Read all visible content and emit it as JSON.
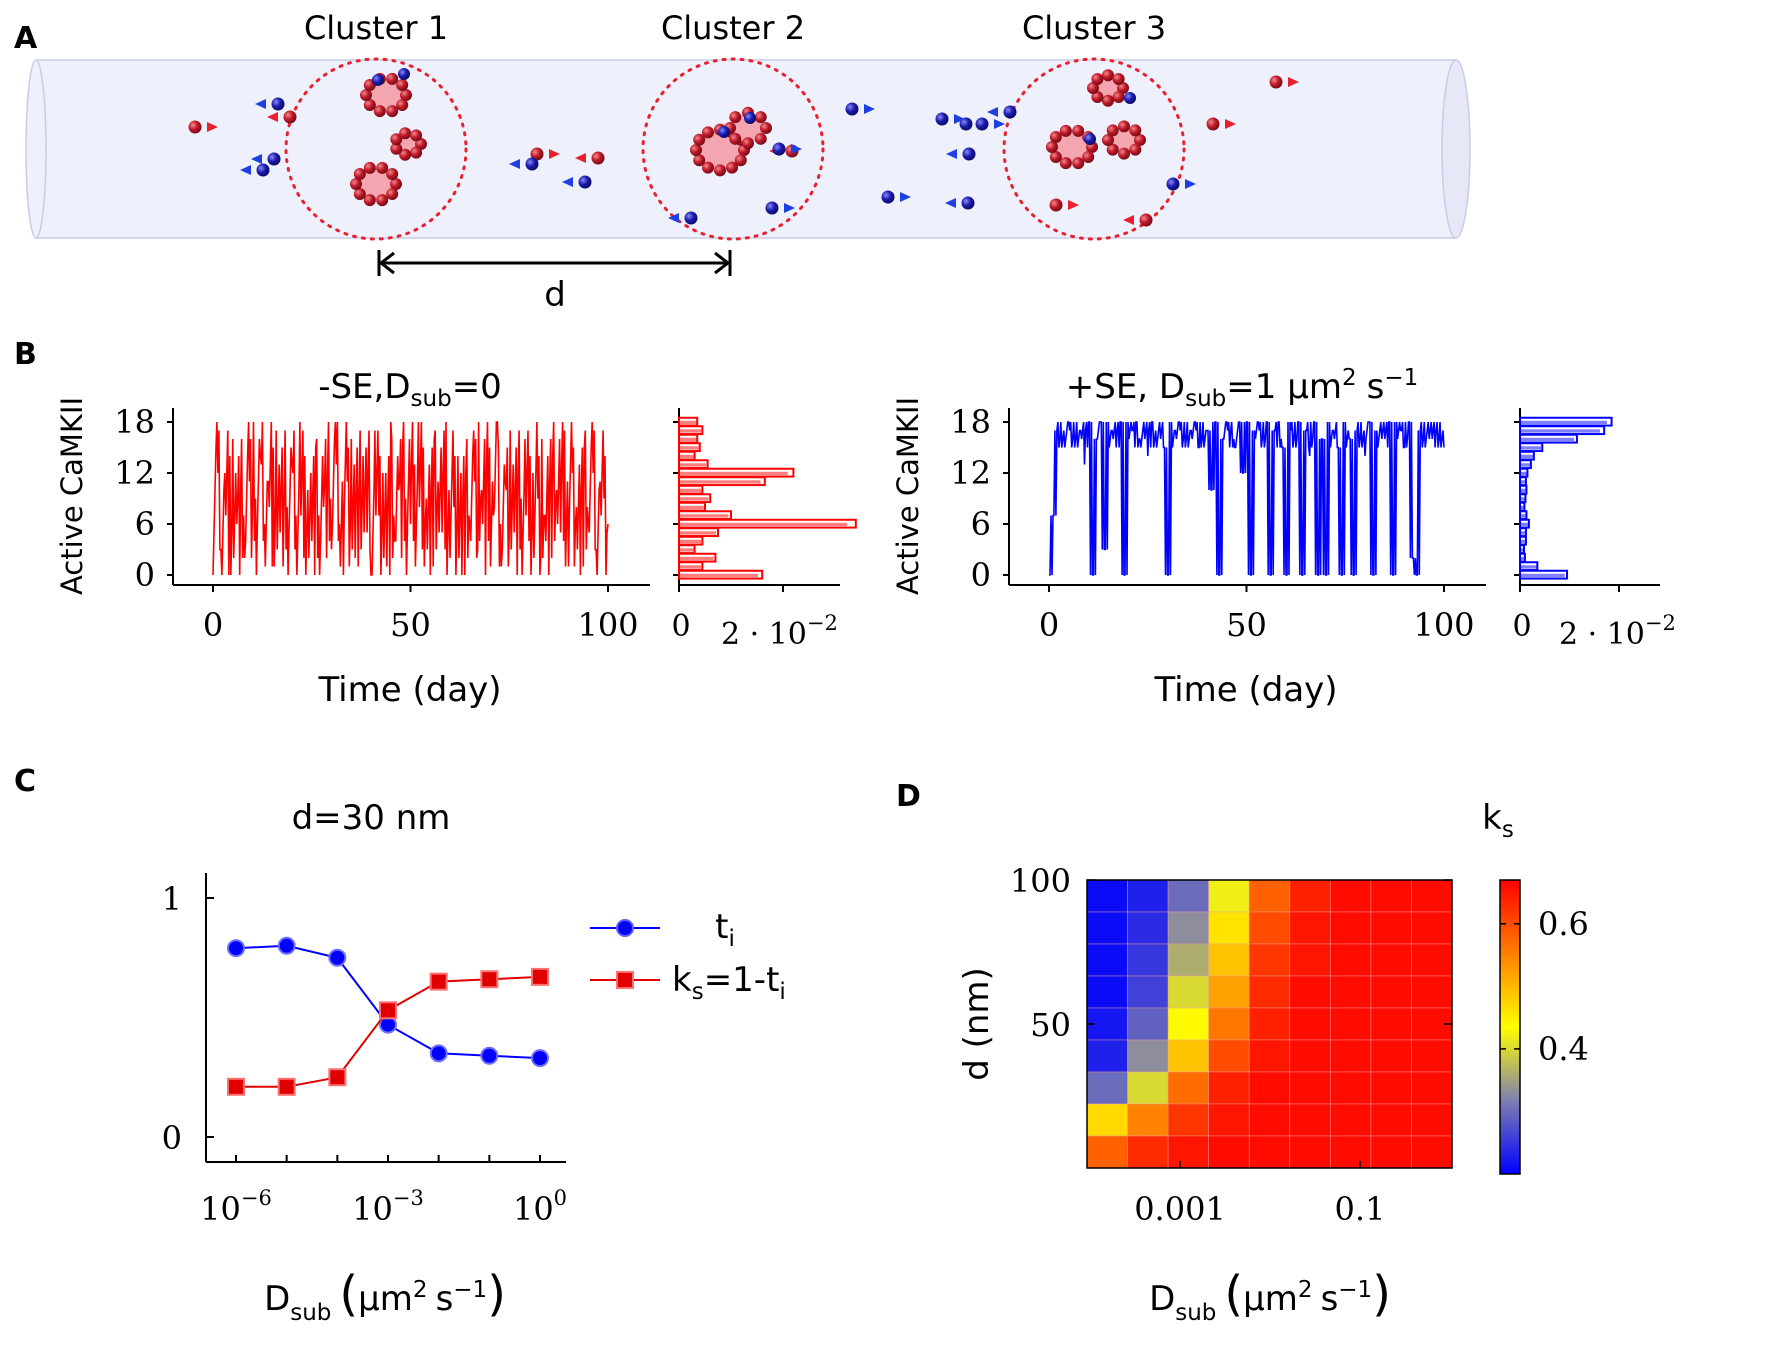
{
  "panel_labels": {
    "a": "A",
    "b": "B",
    "c": "C",
    "d": "D"
  },
  "schematic": {
    "clusters": [
      "Cluster 1",
      "Cluster 2",
      "Cluster 3"
    ],
    "distance_label": "d",
    "colors": {
      "tube": "#EEF0FB",
      "active": "#C0192B",
      "inactive": "#1A1AB0",
      "circle": "#E8202F"
    }
  },
  "chart_data": [
    {
      "id": "B-left",
      "type": "line",
      "title": "-SE,D",
      "title_sub": "sub",
      "title_tail": "=0",
      "xlabel": "Time (day)",
      "ylabel": "Active CaMKII",
      "xlim": [
        0,
        100
      ],
      "ylim": [
        0,
        18
      ],
      "xticks": [
        "0",
        "50",
        "100"
      ],
      "yticks": [
        "0",
        "6",
        "12",
        "18"
      ],
      "color": "#FF0000",
      "x": [
        0,
        1,
        2,
        3,
        4,
        5,
        6,
        7,
        8,
        9,
        10,
        11,
        12,
        13,
        14,
        15,
        16,
        17,
        18,
        19,
        20,
        21,
        22,
        23,
        24,
        25,
        26,
        27,
        28,
        29,
        30,
        31,
        32,
        33,
        34,
        35,
        36,
        37,
        38,
        39,
        40,
        41,
        42,
        43,
        44,
        45,
        46,
        47,
        48,
        49,
        50,
        51,
        52,
        53,
        54,
        55,
        56,
        57,
        58,
        59,
        60,
        61,
        62,
        63,
        64,
        65,
        66,
        67,
        68,
        69,
        70,
        71,
        72,
        73,
        74,
        75,
        76,
        77,
        78,
        79,
        80,
        81,
        82,
        83,
        84,
        85,
        86,
        87,
        88,
        89,
        90,
        91,
        92,
        93,
        94,
        95,
        96,
        97,
        98,
        99,
        100
      ],
      "y": [
        0,
        18,
        3,
        12,
        0,
        16,
        6,
        10,
        2,
        18,
        8,
        0,
        14,
        6,
        11,
        1,
        17,
        5,
        9,
        0,
        13,
        7,
        18,
        2,
        10,
        4,
        15,
        0,
        8,
        12,
        3,
        18,
        6,
        0,
        11,
        16,
        2,
        9,
        14,
        5,
        0,
        17,
        7,
        12,
        1,
        18,
        4,
        10,
        15,
        0,
        6,
        13,
        18,
        3,
        9,
        0,
        16,
        11,
        5,
        18,
        2,
        8,
        14,
        0,
        12,
        6,
        17,
        3,
        10,
        0,
        15,
        7,
        18,
        1,
        11,
        5,
        13,
        0,
        9,
        16,
        4,
        12,
        18,
        2,
        7,
        0,
        14,
        10,
        5,
        17,
        1,
        12,
        8,
        0,
        15,
        6,
        18,
        3,
        11,
        9,
        6
      ],
      "histogram": {
        "bins": [
          0,
          1,
          2,
          3,
          4,
          5,
          6,
          7,
          8,
          9,
          10,
          11,
          12,
          13,
          14,
          15,
          16,
          17,
          18
        ],
        "freq": [
          0.016,
          0.0045,
          0.007,
          0.003,
          0.0045,
          0.0075,
          0.034,
          0.01,
          0.005,
          0.006,
          0.0045,
          0.0165,
          0.022,
          0.0055,
          0.003,
          0.004,
          0.0035,
          0.0045,
          0.0035
        ]
      },
      "hist_xticks": [
        "0",
        "2 · 10",
        "−2"
      ]
    },
    {
      "id": "B-right",
      "type": "line",
      "title": "+SE, D",
      "title_sub": "sub",
      "title_tail": "=1 μm",
      "title_sup": "2",
      "title_unit": "s",
      "title_unit_sup": "−1",
      "xlabel": "Time (day)",
      "ylabel": "Active CaMKII",
      "xlim": [
        0,
        100
      ],
      "ylim": [
        0,
        18
      ],
      "xticks": [
        "0",
        "50",
        "100"
      ],
      "yticks": [
        "0",
        "6",
        "12",
        "18"
      ],
      "color": "#0000FF",
      "x": [
        0,
        1,
        2,
        3,
        4,
        5,
        6,
        7,
        8,
        9,
        10,
        11,
        12,
        13,
        14,
        15,
        16,
        17,
        18,
        19,
        20,
        21,
        22,
        23,
        24,
        25,
        26,
        27,
        28,
        29,
        30,
        31,
        32,
        33,
        34,
        35,
        36,
        37,
        38,
        39,
        40,
        41,
        42,
        43,
        44,
        45,
        46,
        47,
        48,
        49,
        50,
        51,
        52,
        53,
        54,
        55,
        56,
        57,
        58,
        59,
        60,
        61,
        62,
        63,
        64,
        65,
        66,
        67,
        68,
        69,
        70,
        71,
        72,
        73,
        74,
        75,
        76,
        77,
        78,
        79,
        80,
        81,
        82,
        83,
        84,
        85,
        86,
        87,
        88,
        89,
        90,
        91,
        92,
        93,
        94,
        95,
        96,
        97,
        98,
        99,
        100
      ],
      "y": [
        0,
        7,
        17,
        18,
        15,
        18,
        16,
        18,
        17,
        13,
        18,
        0,
        16,
        18,
        3,
        18,
        17,
        15,
        18,
        0,
        18,
        17,
        18,
        16,
        18,
        14,
        18,
        17,
        18,
        15,
        0,
        18,
        17,
        18,
        16,
        18,
        17,
        18,
        15,
        18,
        17,
        10,
        18,
        0,
        16,
        18,
        17,
        15,
        18,
        12,
        18,
        0,
        17,
        18,
        16,
        18,
        0,
        17,
        18,
        15,
        0,
        18,
        16,
        18,
        0,
        17,
        14,
        18,
        0,
        16,
        0,
        18,
        17,
        15,
        0,
        18,
        16,
        0,
        17,
        18,
        14,
        18,
        0,
        17,
        18,
        16,
        18,
        0,
        18,
        17,
        15,
        18,
        2,
        0,
        17,
        18,
        18,
        16,
        17,
        18,
        15
      ],
      "histogram": {
        "bins": [
          0,
          1,
          2,
          3,
          4,
          5,
          6,
          7,
          8,
          9,
          10,
          11,
          12,
          13,
          14,
          15,
          16,
          17,
          18
        ],
        "freq": [
          0.0095,
          0.0035,
          0.001,
          0.0008,
          0.0012,
          0.0012,
          0.0018,
          0.0013,
          0.0009,
          0.0011,
          0.0013,
          0.0012,
          0.0015,
          0.0022,
          0.0028,
          0.0045,
          0.0115,
          0.017,
          0.0185
        ]
      },
      "hist_xticks": [
        "0",
        "2 · 10",
        "−2"
      ]
    },
    {
      "id": "C",
      "type": "line",
      "title": "d=30 nm",
      "xlabel": "D",
      "xlabel_sub": "sub",
      "xlabel_unit": "μm",
      "xlabel_unit_sup": "2",
      "xlabel_unit_s": "s",
      "xlabel_unit_s_sup": "−1",
      "x_scale": "log",
      "xlim": [
        1e-06,
        1
      ],
      "ylim": [
        0,
        1
      ],
      "xticks": [
        {
          "base": "10",
          "exp": "−6"
        },
        {
          "base": "10",
          "exp": "−3"
        },
        {
          "base": "10",
          "exp": "0"
        }
      ],
      "yticks": [
        "0",
        "1"
      ],
      "x": [
        1e-06,
        1e-05,
        0.0001,
        0.001,
        0.01,
        0.1,
        1
      ],
      "series": [
        {
          "name": "t",
          "name_sub": "i",
          "marker": "circle",
          "color": "#0000FF",
          "values": [
            0.79,
            0.8,
            0.75,
            0.47,
            0.35,
            0.34,
            0.33
          ]
        },
        {
          "name": "k",
          "name_sub": "s",
          "name_tail": "=1-t",
          "name_tail_sub": "i",
          "marker": "square",
          "color": "#E00000",
          "values": [
            0.21,
            0.21,
            0.25,
            0.53,
            0.65,
            0.66,
            0.67
          ]
        }
      ]
    },
    {
      "id": "D",
      "type": "heatmap",
      "xlabel": "D",
      "xlabel_sub": "sub",
      "xlabel_unit": "μm",
      "xlabel_unit_sup": "2",
      "xlabel_unit_s": "s",
      "xlabel_unit_s_sup": "−1",
      "ylabel": "d (nm)",
      "colorbar_label": "k",
      "colorbar_label_sub": "s",
      "x_scale": "log",
      "xticks": [
        "0.001",
        "0.1"
      ],
      "yticks": [
        "50",
        "100"
      ],
      "colorbar_range": [
        0.2,
        0.67
      ],
      "colorbar_ticks": [
        "0.4",
        "0.6"
      ],
      "rows_top_to_bottom": [
        [
          0.21,
          0.23,
          0.3,
          0.42,
          0.58,
          0.64,
          0.66,
          0.66,
          0.66
        ],
        [
          0.21,
          0.24,
          0.33,
          0.46,
          0.6,
          0.65,
          0.66,
          0.66,
          0.66
        ],
        [
          0.21,
          0.25,
          0.36,
          0.49,
          0.62,
          0.65,
          0.66,
          0.66,
          0.66
        ],
        [
          0.21,
          0.26,
          0.4,
          0.52,
          0.63,
          0.66,
          0.66,
          0.66,
          0.66
        ],
        [
          0.22,
          0.29,
          0.44,
          0.56,
          0.64,
          0.66,
          0.66,
          0.66,
          0.66
        ],
        [
          0.23,
          0.33,
          0.49,
          0.6,
          0.65,
          0.66,
          0.66,
          0.66,
          0.66
        ],
        [
          0.3,
          0.4,
          0.57,
          0.64,
          0.66,
          0.66,
          0.66,
          0.66,
          0.66
        ],
        [
          0.47,
          0.55,
          0.62,
          0.65,
          0.66,
          0.66,
          0.66,
          0.66,
          0.66
        ],
        [
          0.58,
          0.63,
          0.65,
          0.66,
          0.66,
          0.66,
          0.66,
          0.66,
          0.66
        ]
      ]
    }
  ]
}
